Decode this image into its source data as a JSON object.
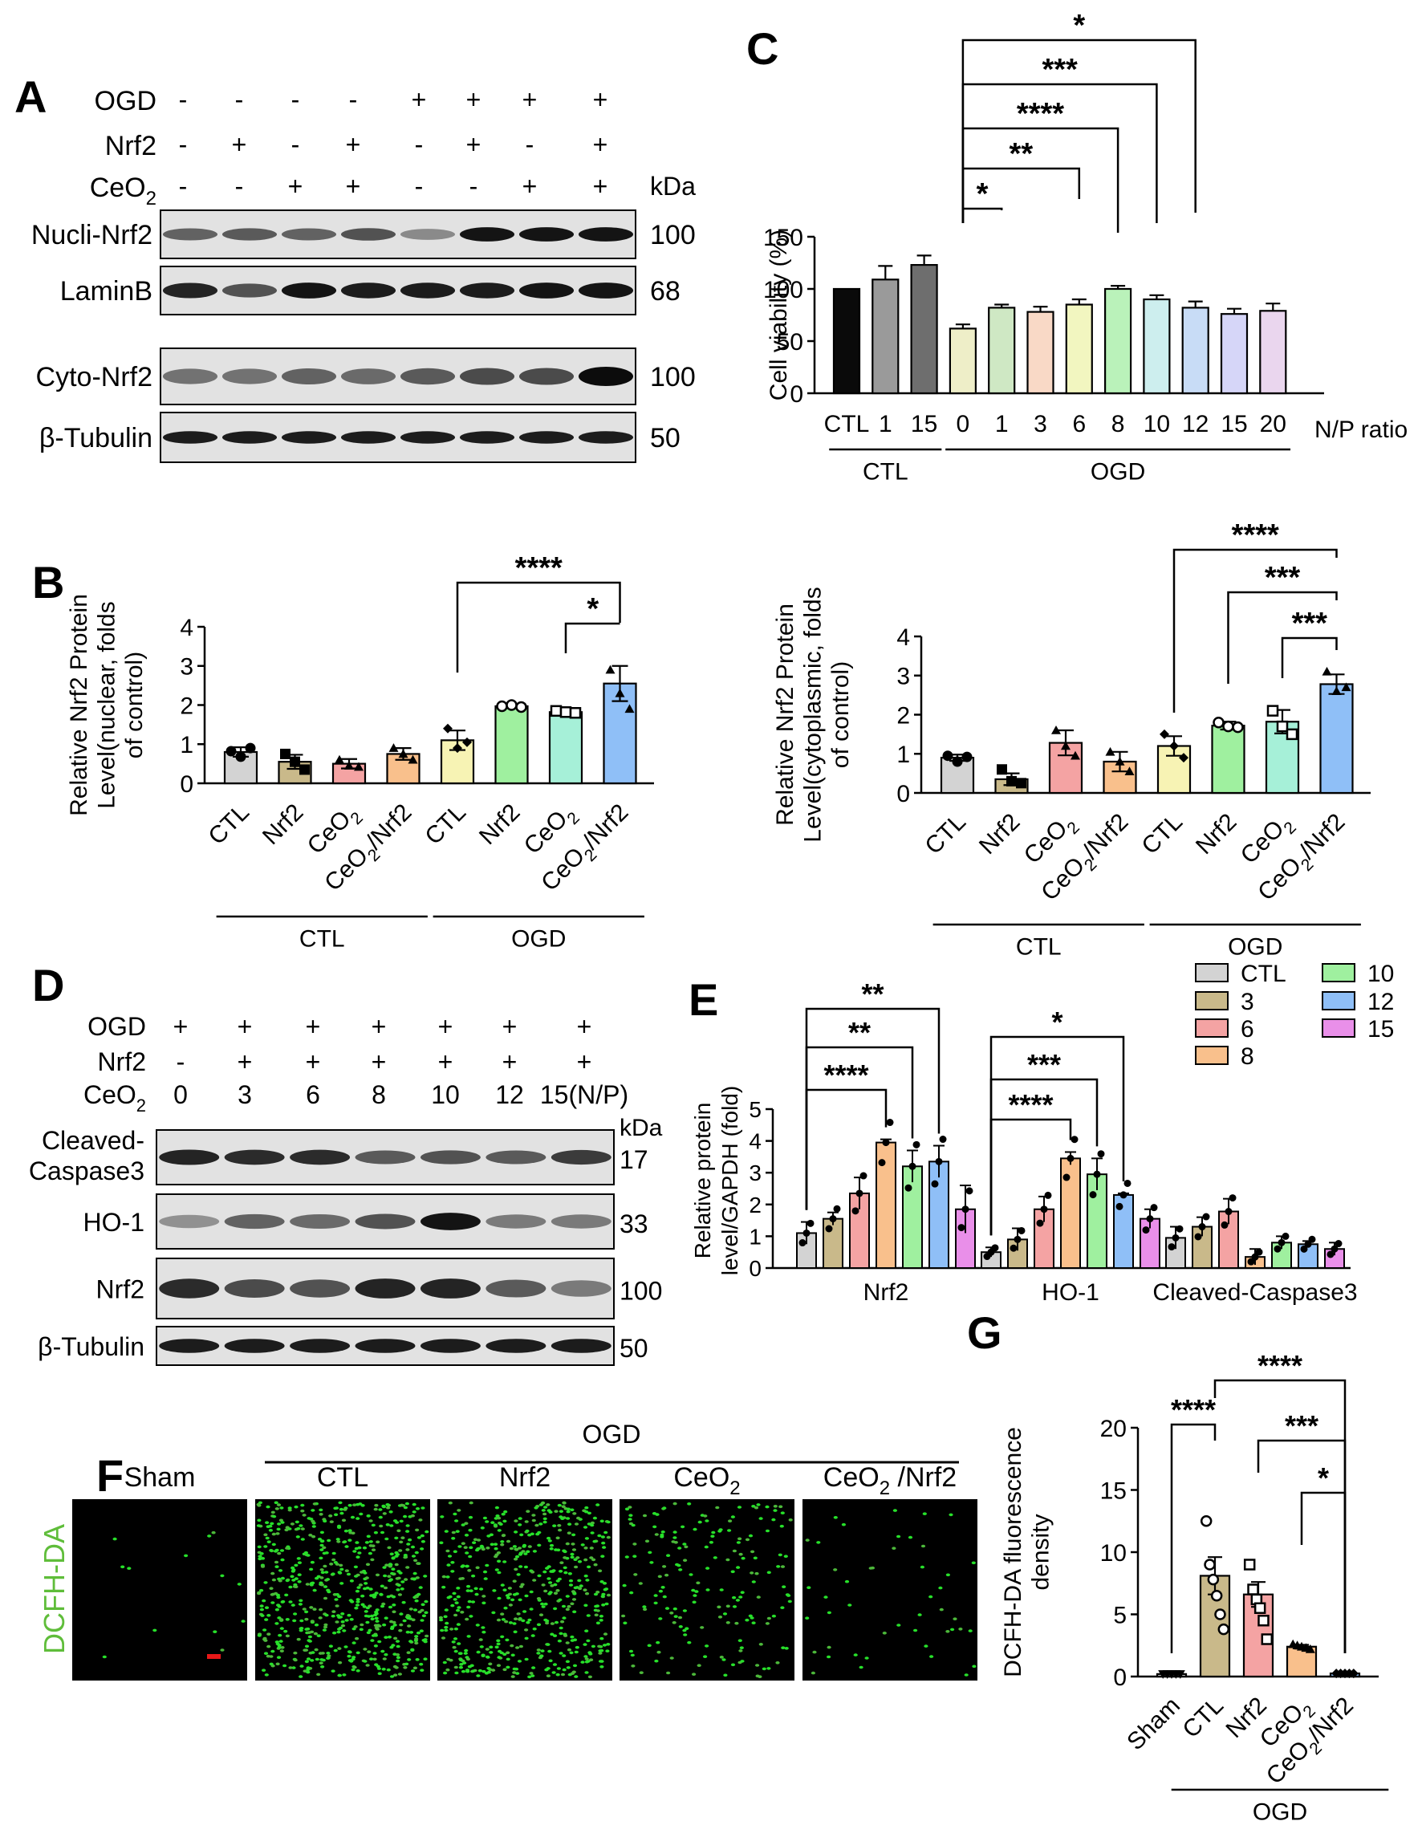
{
  "panels": {
    "A": {
      "letter": "A",
      "rows": [
        {
          "label": "OGD",
          "signs": [
            "-",
            "-",
            "-",
            "-",
            "+",
            "+",
            "+",
            "+"
          ]
        },
        {
          "label": "Nrf2",
          "signs": [
            "-",
            "+",
            "-",
            "+",
            "-",
            "+",
            "-",
            "+"
          ]
        },
        {
          "label": "CeO",
          "sub": "2",
          "signs": [
            "-",
            "-",
            "+",
            "+",
            "-",
            "-",
            "+",
            "+"
          ]
        }
      ],
      "kda": "kDa",
      "blots": [
        {
          "label": "Nucli-Nrf2",
          "kda": "100"
        },
        {
          "label": "LaminB",
          "kda": "68"
        },
        {
          "label": "Cyto-Nrf2",
          "kda": "100"
        },
        {
          "label": "β-Tubulin",
          "kda": "50"
        }
      ]
    },
    "B": {
      "letter": "B"
    },
    "C": {
      "letter": "C"
    },
    "D": {
      "letter": "D",
      "rows": [
        {
          "label": "OGD",
          "signs": [
            "+",
            "+",
            "+",
            "+",
            "+",
            "+",
            "+"
          ]
        },
        {
          "label": "Nrf2",
          "signs": [
            "-",
            "+",
            "+",
            "+",
            "+",
            "+",
            "+"
          ]
        },
        {
          "label": "CeO",
          "sub": "2",
          "signs": [
            "0",
            "3",
            "6",
            "8",
            "10",
            "12",
            "15(N/P)"
          ]
        }
      ],
      "kda": "kDa",
      "blots": [
        {
          "label": "Cleaved-",
          "label2": "Caspase3",
          "kda": "17"
        },
        {
          "label": "HO-1",
          "kda": "33"
        },
        {
          "label": "Nrf2",
          "kda": "100"
        },
        {
          "label": "β-Tubulin",
          "kda": "50"
        }
      ]
    },
    "E": {
      "letter": "E"
    },
    "F": {
      "letter": "F",
      "group_label": "OGD",
      "stain_label": "DCFH-DA",
      "images": [
        {
          "title": "Sham",
          "density": 0.02
        },
        {
          "title": "CTL",
          "density": 1.0
        },
        {
          "title": "Nrf2",
          "density": 0.82
        },
        {
          "title": "CeO",
          "sub": "2",
          "density": 0.28
        },
        {
          "title": "CeO",
          "sub": "2",
          "suffix": " /Nrf2",
          "density": 0.07
        }
      ]
    },
    "G": {
      "letter": "G"
    }
  },
  "chart_data": [
    {
      "id": "B-nuclear",
      "type": "bar",
      "ylabel": [
        "Relative Nrf2 Protein",
        "Level(nuclear, folds",
        "of control)"
      ],
      "ylim": [
        0,
        4
      ],
      "yticks": [
        0,
        1,
        2,
        3,
        4
      ],
      "categories": [
        "CTL",
        "Nrf2",
        "CeO2",
        "CeO2/Nrf2",
        "CTL",
        "Nrf2",
        "CeO2",
        "CeO2/Nrf2"
      ],
      "values": [
        0.8,
        0.55,
        0.5,
        0.75,
        1.1,
        1.97,
        1.82,
        2.55
      ],
      "errors": [
        0.12,
        0.18,
        0.12,
        0.15,
        0.25,
        0.03,
        0.08,
        0.45
      ],
      "colors": [
        "#d3d3d3",
        "#c9b98a",
        "#f4a3a3",
        "#f9c08c",
        "#f7f3b4",
        "#9ff09f",
        "#a6f0d8",
        "#8fbff7"
      ],
      "points": [
        [
          0.82,
          0.68,
          0.9
        ],
        [
          0.75,
          0.55,
          0.35
        ],
        [
          0.6,
          0.45,
          0.42
        ],
        [
          0.9,
          0.75,
          0.6
        ],
        [
          1.4,
          0.9,
          1.05
        ],
        [
          1.97,
          2.0,
          1.95
        ],
        [
          1.85,
          1.82,
          1.8
        ],
        [
          2.9,
          2.3,
          1.9
        ]
      ],
      "markers": [
        "circle",
        "square",
        "triangle",
        "triangle",
        "diamond",
        "circle-open",
        "square-open",
        "triangle"
      ],
      "groups": [
        {
          "label": "CTL",
          "from": 0,
          "to": 3
        },
        {
          "label": "OGD",
          "from": 4,
          "to": 7
        }
      ],
      "significance": [
        {
          "from": 4,
          "to": 7,
          "label": "****"
        },
        {
          "from": 6,
          "to": 7,
          "label": "*"
        }
      ]
    },
    {
      "id": "B-cytoplasmic",
      "type": "bar",
      "ylabel": [
        "Relative Nrf2 Protein",
        "Level(cytoplasmic, folds",
        "of control)"
      ],
      "ylim": [
        0,
        4
      ],
      "yticks": [
        0,
        1,
        2,
        3,
        4
      ],
      "categories": [
        "CTL",
        "Nrf2",
        "CeO2",
        "CeO2/Nrf2",
        "CTL",
        "Nrf2",
        "CeO2",
        "CeO2/Nrf2"
      ],
      "values": [
        0.9,
        0.35,
        1.28,
        0.8,
        1.2,
        1.72,
        1.82,
        2.78
      ],
      "errors": [
        0.08,
        0.15,
        0.32,
        0.25,
        0.25,
        0.1,
        0.3,
        0.25
      ],
      "colors": [
        "#d3d3d3",
        "#c9b98a",
        "#f4a3a3",
        "#f9c08c",
        "#f7f3b4",
        "#9ff09f",
        "#a6f0d8",
        "#8fbff7"
      ],
      "points": [
        [
          0.95,
          0.8,
          0.92
        ],
        [
          0.6,
          0.3,
          0.25
        ],
        [
          1.6,
          1.2,
          0.95
        ],
        [
          1.05,
          0.8,
          0.55
        ],
        [
          1.5,
          1.2,
          0.9
        ],
        [
          1.8,
          1.7,
          1.68
        ],
        [
          2.1,
          1.7,
          1.5
        ],
        [
          3.1,
          2.6,
          2.7
        ]
      ],
      "markers": [
        "circle",
        "square",
        "triangle",
        "triangle",
        "diamond",
        "circle-open",
        "square-open",
        "triangle"
      ],
      "groups": [
        {
          "label": "CTL",
          "from": 0,
          "to": 3
        },
        {
          "label": "OGD",
          "from": 4,
          "to": 7
        }
      ],
      "significance": [
        {
          "from": 4,
          "to": 7,
          "label": "****"
        },
        {
          "from": 5,
          "to": 7,
          "label": "***"
        },
        {
          "from": 6,
          "to": 7,
          "label": "***"
        }
      ]
    },
    {
      "id": "C",
      "type": "bar",
      "ylabel": "Cell viability (%)",
      "ylim": [
        0,
        150
      ],
      "yticks": [
        0,
        50,
        100,
        150
      ],
      "categories": [
        "CTL",
        "1",
        "15",
        "0",
        "1",
        "3",
        "6",
        "8",
        "10",
        "12",
        "15",
        "20"
      ],
      "values": [
        100,
        109,
        123,
        62,
        82,
        78,
        85,
        100,
        90,
        82,
        76,
        79
      ],
      "errors": [
        0,
        13,
        9,
        4,
        3,
        5,
        5,
        3,
        4,
        6,
        5,
        7
      ],
      "colors": [
        "#0a0a0a",
        "#9a9a9a",
        "#6e6e6e",
        "#eeeec8",
        "#cfe8c4",
        "#f9d9c6",
        "#f2f6c0",
        "#baf2ba",
        "#cdeeee",
        "#c8dcf6",
        "#d6d6f8",
        "#ead6ee"
      ],
      "xlabel_right": "N/P ratio",
      "groups": [
        {
          "label": "CTL",
          "from": 0,
          "to": 2
        },
        {
          "label": "OGD",
          "from": 3,
          "to": 11
        }
      ],
      "significance": [
        {
          "from": 3,
          "to": 4,
          "label": "*"
        },
        {
          "from": 3,
          "to": 6,
          "label": "**"
        },
        {
          "from": 3,
          "to": 7,
          "label": "****"
        },
        {
          "from": 3,
          "to": 8,
          "label": "***"
        },
        {
          "from": 3,
          "to": 9,
          "label": "*"
        }
      ]
    },
    {
      "id": "E",
      "type": "bar",
      "ylabel": [
        "Relative protein",
        "level/GAPDH (fold)"
      ],
      "ylim": [
        0,
        5
      ],
      "yticks": [
        0,
        1,
        2,
        3,
        4,
        5
      ],
      "groups": [
        "Nrf2",
        "HO-1",
        "Cleaved-Caspase3"
      ],
      "series": [
        {
          "name": "CTL",
          "color": "#d3d3d3",
          "values": [
            1.1,
            0.5,
            0.95
          ],
          "errors": [
            0.35,
            0.15,
            0.35
          ]
        },
        {
          "name": "3",
          "color": "#c9b98a",
          "values": [
            1.55,
            0.9,
            1.3
          ],
          "errors": [
            0.2,
            0.35,
            0.3
          ]
        },
        {
          "name": "6",
          "color": "#f4a3a3",
          "values": [
            2.35,
            1.85,
            1.78
          ],
          "errors": [
            0.5,
            0.4,
            0.4
          ]
        },
        {
          "name": "8",
          "color": "#f9c08c",
          "values": [
            3.95,
            3.45,
            0.35
          ],
          "errors": [
            0.1,
            0.2,
            0.25
          ]
        },
        {
          "name": "10",
          "color": "#9ff09f",
          "values": [
            3.2,
            2.95,
            0.8
          ],
          "errors": [
            0.5,
            0.5,
            0.2
          ]
        },
        {
          "name": "12",
          "color": "#8fbff7",
          "values": [
            3.35,
            2.3,
            0.75
          ],
          "errors": [
            0.5,
            0.05,
            0.1
          ]
        },
        {
          "name": "15",
          "color": "#e98fe9",
          "values": [
            1.85,
            1.55,
            0.6
          ],
          "errors": [
            0.75,
            0.3,
            0.2
          ]
        }
      ],
      "significance": [
        {
          "group": 0,
          "from": 0,
          "to": 3,
          "label": "****"
        },
        {
          "group": 0,
          "from": 0,
          "to": 4,
          "label": "**"
        },
        {
          "group": 0,
          "from": 0,
          "to": 5,
          "label": "**"
        },
        {
          "group": 1,
          "from": 0,
          "to": 3,
          "label": "****"
        },
        {
          "group": 1,
          "from": 0,
          "to": 4,
          "label": "***"
        },
        {
          "group": 1,
          "from": 0,
          "to": 5,
          "label": "*"
        }
      ],
      "legend_position": "top-right"
    },
    {
      "id": "G",
      "type": "bar",
      "ylabel": [
        "DCFH-DA fluorescence",
        "density"
      ],
      "ylim": [
        0,
        20
      ],
      "yticks": [
        0,
        5,
        10,
        15,
        20
      ],
      "categories": [
        "Sham",
        "CTL",
        "Nrf2",
        "CeO2",
        "CeO2/Nrf2"
      ],
      "values": [
        0.2,
        8.1,
        6.6,
        2.4,
        0.25
      ],
      "errors": [
        0.05,
        1.5,
        1.0,
        0.15,
        0.05
      ],
      "colors": [
        "#d3d3d3",
        "#c9b98a",
        "#f4a3a3",
        "#f9c08c",
        "#8fbff7"
      ],
      "points": [
        [
          0.2,
          0.2,
          0.2,
          0.2,
          0.2
        ],
        [
          12.5,
          9.0,
          7.8,
          6.5,
          5.0,
          3.8
        ],
        [
          9.0,
          7.0,
          6.2,
          5.5,
          4.5,
          3.0
        ],
        [
          2.6,
          2.5,
          2.4,
          2.3,
          2.2
        ],
        [
          0.25,
          0.25,
          0.25,
          0.25,
          0.25
        ]
      ],
      "markers": [
        "triangle-down",
        "circle-open",
        "square-open",
        "triangle",
        "diamond"
      ],
      "groups": [
        {
          "label": "OGD",
          "from": 1,
          "to": 4
        }
      ],
      "significance": [
        {
          "from": 0,
          "to": 1,
          "label": "****"
        },
        {
          "from": 1,
          "to": 4,
          "label": "****"
        },
        {
          "from": 2,
          "to": 4,
          "label": "***"
        },
        {
          "from": 3,
          "to": 4,
          "label": "*"
        }
      ]
    }
  ]
}
